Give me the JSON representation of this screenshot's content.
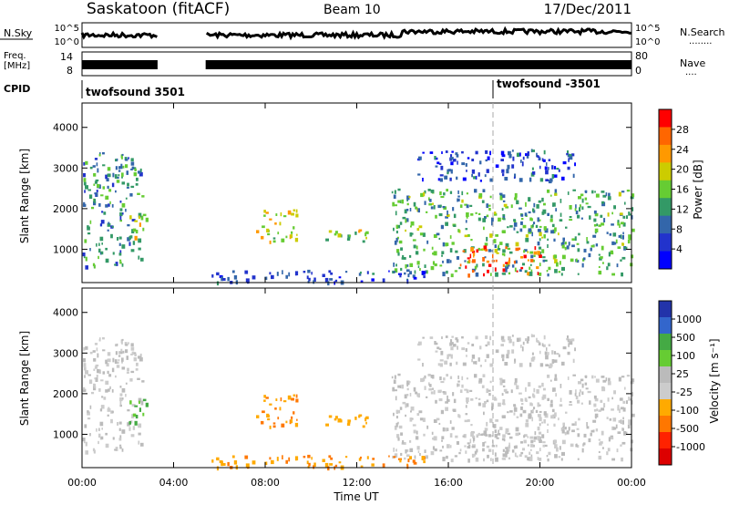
{
  "header": {
    "station": "Saskatoon (fitACF)",
    "beam": "Beam 10",
    "date": "17/Dec/2011"
  },
  "nsky_panel": {
    "left_label": "N.Sky",
    "right_label": "N.Search",
    "right_dots": "........",
    "left_ticks": [
      "10^5",
      "10^0"
    ],
    "right_ticks": [
      "10^5",
      "10^0"
    ]
  },
  "freq_panel": {
    "left_label_1": "Freq.",
    "left_label_2": "[MHz]",
    "right_label": "Nave",
    "right_dots": "....",
    "left_ticks": [
      "14",
      "8"
    ],
    "right_ticks": [
      "80",
      "0"
    ]
  },
  "cpid": {
    "label": "CPID",
    "segments": [
      {
        "name": "twofsound 3501",
        "start_hour": 0.0,
        "end_hour": 18.0
      },
      {
        "name": "twofsound -3501",
        "start_hour": 18.0,
        "end_hour": 24.0
      }
    ]
  },
  "x_axis": {
    "label": "Time UT",
    "ticks": [
      "00:00",
      "04:00",
      "08:00",
      "12:00",
      "16:00",
      "20:00",
      "00:00"
    ]
  },
  "power_panel": {
    "ylabel": "Slant Range [km]",
    "yticks": [
      "1000",
      "2000",
      "3000",
      "4000"
    ],
    "colorbar_label": "Power [dB]",
    "colorbar_ticks": [
      "28",
      "24",
      "20",
      "16",
      "12",
      "8",
      "4"
    ],
    "colors": [
      "#ff0000",
      "#ff6600",
      "#ff9900",
      "#cccc00",
      "#66cc33",
      "#339966",
      "#3366aa",
      "#2233cc",
      "#0000ff"
    ]
  },
  "velocity_panel": {
    "ylabel": "Slant Range [km]",
    "yticks": [
      "1000",
      "2000",
      "3000",
      "4000"
    ],
    "colorbar_label": "Velocity [m s⁻¹]",
    "colorbar_ticks": [
      "1000",
      "500",
      "100",
      "25",
      "-25",
      "-100",
      "-500",
      "-1000"
    ],
    "colors": [
      "#2233aa",
      "#3366cc",
      "#44aa44",
      "#66cc33",
      "#bbbbbb",
      "#cccccc",
      "#ffaa00",
      "#ff7700",
      "#ff2200",
      "#dd0000"
    ]
  },
  "chart_data": {
    "type": "heatmap",
    "title": "Saskatoon (fitACF)",
    "xlabel": "Time UT",
    "ylabel": "Slant Range [km]",
    "xlim": [
      0,
      24
    ],
    "ylim": [
      180,
      4600
    ],
    "data_gaps_hours": [
      [
        3.3,
        5.4
      ]
    ],
    "scatter_regions": [
      {
        "start_hour": 0.0,
        "end_hour": 2.6,
        "range_min_km": 600,
        "range_max_km": 3400,
        "power_db": 10,
        "velocity": "-25 to 25"
      },
      {
        "start_hour": 2.0,
        "end_hour": 2.8,
        "range_min_km": 1300,
        "range_max_km": 1900,
        "power_db": 16,
        "velocity": "100"
      },
      {
        "start_hour": 7.6,
        "end_hour": 9.4,
        "range_min_km": 1200,
        "range_max_km": 2000,
        "power_db": 18,
        "velocity": "-100 to -500"
      },
      {
        "start_hour": 10.4,
        "end_hour": 12.8,
        "range_min_km": 1200,
        "range_max_km": 1500,
        "power_db": 16,
        "velocity": "-100"
      },
      {
        "start_hour": 13.5,
        "end_hour": 24.0,
        "range_min_km": 400,
        "range_max_km": 2500,
        "power_db": 12,
        "velocity": "-25 to 25"
      },
      {
        "start_hour": 16.5,
        "end_hour": 20.0,
        "range_min_km": 400,
        "range_max_km": 1100,
        "power_db": 24,
        "velocity": "-25"
      },
      {
        "start_hour": 5.4,
        "end_hour": 15.0,
        "range_min_km": 200,
        "range_max_km": 500,
        "power_db": 6,
        "velocity": "-100 to -500"
      },
      {
        "start_hour": 14.6,
        "end_hour": 21.5,
        "range_min_km": 2700,
        "range_max_km": 3500,
        "power_db": 6,
        "velocity": "25"
      }
    ]
  }
}
